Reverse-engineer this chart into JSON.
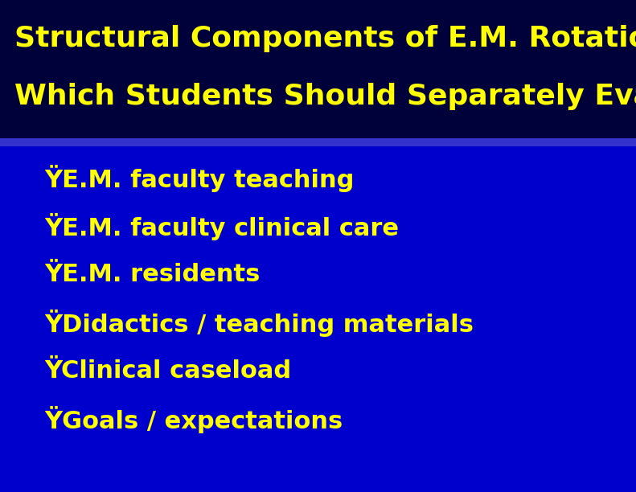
{
  "title_line1": "Structural Components of E.M. Rotations",
  "title_line2": "Which Students Should Separately Evaluate",
  "title_color": "#FFFF00",
  "title_fontsize": 26,
  "title_bg_color": "#00003A",
  "separator_color": "#3333CC",
  "body_bg_color": "#0000CC",
  "body_text_color": "#FFFF00",
  "bullet_char": "Ÿ",
  "body_fontsize": 22,
  "items": [
    "E.M. faculty teaching",
    "E.M. faculty clinical care",
    "E.M. residents",
    "Didactics / teaching materials",
    "Clinical caseload",
    "Goals / expectations"
  ],
  "outer_bg_color": "#000020",
  "fig_width": 7.91,
  "fig_height": 6.12,
  "dpi": 100
}
